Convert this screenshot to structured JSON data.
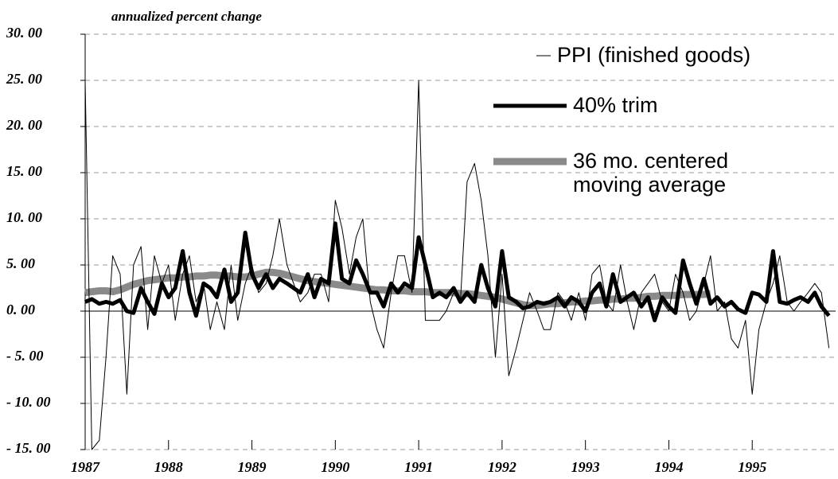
{
  "chart_data": {
    "type": "line",
    "title": "annualized percent change",
    "x": [
      1987.0,
      1987.08,
      1987.17,
      1987.25,
      1987.33,
      1987.42,
      1987.5,
      1987.58,
      1987.67,
      1987.75,
      1987.83,
      1987.92,
      1988.0,
      1988.08,
      1988.17,
      1988.25,
      1988.33,
      1988.42,
      1988.5,
      1988.58,
      1988.67,
      1988.75,
      1988.83,
      1988.92,
      1989.0,
      1989.08,
      1989.17,
      1989.25,
      1989.33,
      1989.42,
      1989.5,
      1989.58,
      1989.67,
      1989.75,
      1989.83,
      1989.92,
      1990.0,
      1990.08,
      1990.17,
      1990.25,
      1990.33,
      1990.42,
      1990.5,
      1990.58,
      1990.67,
      1990.75,
      1990.83,
      1990.92,
      1991.0,
      1991.08,
      1991.17,
      1991.25,
      1991.33,
      1991.42,
      1991.5,
      1991.58,
      1991.67,
      1991.75,
      1991.83,
      1991.92,
      1992.0,
      1992.08,
      1992.17,
      1992.25,
      1992.33,
      1992.42,
      1992.5,
      1992.58,
      1992.67,
      1992.75,
      1992.83,
      1992.92,
      1993.0,
      1993.08,
      1993.17,
      1993.25,
      1993.33,
      1993.42,
      1993.5,
      1993.58,
      1993.67,
      1993.75,
      1993.83,
      1993.92,
      1994.0,
      1994.08,
      1994.17,
      1994.25,
      1994.33,
      1994.42,
      1994.5,
      1994.58,
      1994.67,
      1994.75,
      1994.83,
      1994.92,
      1995.0,
      1995.08,
      1995.17,
      1995.25,
      1995.33,
      1995.42,
      1995.5,
      1995.58,
      1995.67,
      1995.75,
      1995.83,
      1995.92
    ],
    "series": [
      {
        "name": "PPI (finished goods)",
        "color": "#000000",
        "width": 1,
        "values": [
          25,
          -15,
          -14,
          -5,
          6,
          4,
          -9,
          5,
          7,
          -2,
          6,
          3,
          5,
          -1,
          4,
          6,
          1,
          3,
          -2,
          1,
          -2,
          5,
          -1,
          3,
          5,
          2,
          3,
          6,
          10,
          5,
          3,
          1,
          2,
          4,
          4,
          1,
          12,
          9,
          4,
          8,
          10,
          1,
          -2,
          -4,
          2,
          6,
          6,
          2,
          25,
          -1,
          -1,
          -1,
          0,
          2,
          1,
          14,
          16,
          12,
          6,
          -5,
          4,
          -7,
          -4,
          -1,
          2,
          0,
          -2,
          -2,
          2,
          1,
          -1,
          2,
          -1,
          4,
          5,
          1,
          0,
          5,
          1,
          -2,
          2,
          3,
          4,
          1,
          0,
          4,
          2,
          -1,
          0,
          3,
          6,
          0,
          1,
          -3,
          -4,
          -1,
          -9,
          -2,
          1,
          3,
          6,
          1,
          0,
          1,
          2,
          3,
          2,
          -4
        ]
      },
      {
        "name": "40% trim",
        "color": "#000000",
        "width": 5,
        "values": [
          1,
          1.3,
          0.8,
          1,
          0.8,
          1.2,
          0,
          -0.2,
          2.5,
          1,
          -0.3,
          3,
          1.5,
          2.5,
          6.5,
          2,
          -0.5,
          3,
          2.5,
          1.5,
          4.5,
          1,
          2,
          8.5,
          4,
          2.5,
          4,
          2.5,
          3.5,
          3,
          2.5,
          2,
          4,
          1.5,
          3.5,
          3,
          9.5,
          3.5,
          3,
          5.5,
          4,
          2,
          2,
          0.5,
          3,
          2,
          3,
          2.5,
          8,
          5,
          1.5,
          2,
          1.5,
          2.5,
          1,
          2,
          1,
          5,
          2.5,
          0.5,
          6.5,
          1.5,
          1,
          0.3,
          0.5,
          1,
          0.8,
          1,
          1.5,
          0.5,
          1.5,
          1,
          0,
          2,
          3,
          0.5,
          4,
          1,
          1.5,
          2,
          0.5,
          1.5,
          -1,
          1.5,
          0.5,
          -0.2,
          5.5,
          3,
          0.8,
          3.5,
          0.8,
          1.5,
          0.5,
          1,
          0.2,
          -0.2,
          2,
          1.8,
          1,
          6.5,
          1,
          0.8,
          1.2,
          1.5,
          1,
          2,
          0.5,
          -0.5
        ]
      },
      {
        "name": "36 mo. centered moving average",
        "color": "#8a8a8a",
        "width": 9,
        "values": [
          2,
          2.1,
          2.2,
          2.2,
          2.1,
          2.3,
          2.6,
          2.9,
          3.1,
          3.3,
          3.4,
          3.5,
          3.6,
          3.6,
          3.7,
          3.7,
          3.8,
          3.8,
          3.9,
          3.9,
          3.8,
          3.8,
          3.7,
          3.7,
          3.8,
          4,
          4.2,
          4.2,
          4.1,
          3.9,
          3.7,
          3.5,
          3.3,
          3.2,
          3.1,
          3,
          2.9,
          2.8,
          2.7,
          2.6,
          2.5,
          2.4,
          2.3,
          2.3,
          2.2,
          2.2,
          2.2,
          2.1,
          2.1,
          2.1,
          2,
          2,
          2,
          2,
          1.9,
          1.9,
          1.8,
          1.7,
          1.6,
          1.5,
          1.3,
          1.1,
          0.9,
          0.7,
          0.6,
          0.6,
          0.7,
          0.8,
          0.8,
          0.9,
          1,
          1,
          1.1,
          1.1,
          1.2,
          1.2,
          1.3,
          1.3,
          1.4,
          1.4,
          1.5,
          1.6,
          1.6,
          1.7,
          1.7,
          1.7,
          1.8,
          1.8,
          1.8,
          1.8,
          1.9,
          null,
          null,
          null,
          null,
          null,
          null,
          null,
          null,
          null,
          null,
          null,
          null,
          null,
          null,
          null,
          null,
          null
        ]
      }
    ],
    "xlim": [
      1987,
      1996
    ],
    "xticks": [
      1987,
      1988,
      1989,
      1990,
      1991,
      1992,
      1993,
      1994,
      1995
    ],
    "ylim": [
      -15,
      30
    ],
    "yticks": [
      {
        "value": -15,
        "label": "- 15. 00"
      },
      {
        "value": -10,
        "label": "- 10. 00"
      },
      {
        "value": -5,
        "label": "- 5. 00"
      },
      {
        "value": 0,
        "label": "0. 00"
      },
      {
        "value": 5,
        "label": "5. 00"
      },
      {
        "value": 10,
        "label": "10. 00"
      },
      {
        "value": 15,
        "label": "15. 00"
      },
      {
        "value": 20,
        "label": "20. 00"
      },
      {
        "value": 25,
        "label": "25. 00"
      },
      {
        "value": 30,
        "label": "30. 00"
      }
    ],
    "grid": true
  }
}
